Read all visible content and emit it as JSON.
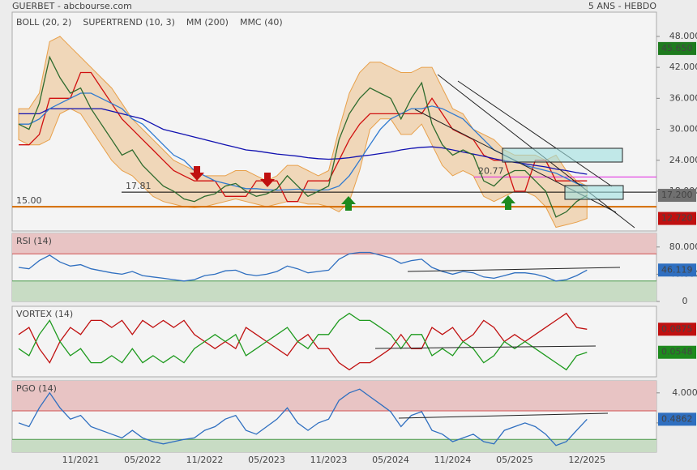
{
  "header": {
    "title": "GUERBET - abcbourse.com",
    "period": "5 ANS - HEBDO"
  },
  "chart_data": [
    {
      "type": "line",
      "ylim": [
        10.3,
        52.7
      ],
      "yticks": [
        {
          "value": 48,
          "label": "48.000"
        },
        {
          "value": 42,
          "label": "42.000"
        },
        {
          "value": 36,
          "label": "36.000"
        },
        {
          "value": 30,
          "label": "30.000"
        },
        {
          "value": 24,
          "label": "24.000"
        },
        {
          "value": 18,
          "label": "18.000"
        }
      ],
      "bands": [
        {
          "name": "BOLL (20, 2)",
          "color": "#e8a04a",
          "upper": [
            34,
            34,
            37,
            47,
            48,
            46,
            44,
            42,
            40,
            38,
            35,
            32,
            30,
            28,
            26,
            24,
            23,
            22,
            21,
            21,
            21,
            22,
            22,
            21,
            20,
            21,
            23,
            23,
            22,
            21,
            22,
            30,
            37,
            41,
            43,
            43,
            42,
            41,
            41,
            42,
            42,
            38,
            34,
            33,
            30,
            29,
            28,
            26,
            25,
            25,
            25,
            24,
            25,
            22,
            20,
            19
          ],
          "lower": [
            28,
            27,
            27,
            28,
            33,
            34,
            33,
            30,
            27,
            24,
            22,
            21,
            19,
            17,
            16,
            15.5,
            15,
            14.8,
            15,
            15.5,
            16,
            16.5,
            16,
            15.5,
            15,
            15.5,
            16,
            16,
            15.5,
            15.5,
            15,
            14,
            16,
            22,
            30,
            32,
            32,
            29,
            29,
            31,
            27,
            23,
            21,
            22,
            21,
            17,
            16,
            17,
            18,
            18,
            17,
            15,
            11,
            11.5,
            12,
            12.72
          ]
        }
      ],
      "series": [
        {
          "name": "SUPERTREND (10, 3)",
          "color": "#d01010",
          "values": [
            27,
            27,
            29,
            36,
            36,
            36,
            41,
            41,
            38,
            35,
            32,
            30,
            28,
            26,
            24,
            22,
            21,
            20,
            20,
            20,
            17,
            17,
            17,
            20,
            20,
            20,
            16,
            16,
            20,
            20,
            20,
            24,
            28,
            31,
            33,
            33,
            33,
            33,
            33,
            33,
            36,
            33,
            30,
            29,
            28,
            25,
            24,
            24,
            18,
            18,
            24,
            24,
            20,
            20,
            20,
            20
          ]
        },
        {
          "name": "MM (200)",
          "color": "#1010b0",
          "values": [
            33,
            33,
            33,
            34,
            34,
            34,
            34,
            34,
            34,
            33.5,
            33,
            32.5,
            32,
            31,
            30,
            29.5,
            29,
            28.5,
            28,
            27.5,
            27,
            26.5,
            26,
            25.8,
            25.5,
            25.2,
            25,
            24.8,
            24.5,
            24.3,
            24.2,
            24.3,
            24.5,
            24.8,
            25,
            25.3,
            25.6,
            26,
            26.3,
            26.5,
            26.6,
            26.4,
            26,
            25.6,
            25.2,
            24.8,
            24.3,
            23.9,
            23.6,
            23.3,
            23,
            22.7,
            22.3,
            22,
            21.6,
            21.3
          ]
        },
        {
          "name": "MMC (40)",
          "color": "#2f7ad0",
          "values": [
            31,
            31,
            32,
            34,
            35,
            36,
            37,
            37,
            36,
            35,
            34,
            32,
            31,
            29,
            27,
            25,
            24,
            22,
            21,
            20,
            19.5,
            19,
            18.5,
            18.5,
            18.3,
            18.2,
            18.3,
            18.4,
            18.3,
            18.2,
            18.3,
            19,
            21,
            24,
            27,
            30,
            32,
            33,
            34,
            34,
            34.5,
            34,
            33,
            32,
            30,
            28,
            26,
            25,
            24,
            23,
            22.5,
            22,
            21.5,
            20.5,
            19.5,
            19
          ]
        },
        {
          "color": "#2e6b2e",
          "values": [
            31,
            30,
            35,
            44,
            40,
            37,
            38,
            34,
            31,
            28,
            25,
            26,
            23,
            21,
            19,
            18,
            16.5,
            16,
            17,
            17.5,
            19,
            19.5,
            18,
            17,
            17.5,
            18.5,
            21,
            19,
            17,
            18,
            19,
            28,
            33,
            36,
            38,
            37,
            36,
            32,
            36,
            39,
            31,
            27,
            25,
            26,
            25,
            20,
            19,
            21,
            22,
            22,
            20,
            18,
            13,
            14,
            16,
            17.2
          ]
        }
      ],
      "levels": [
        {
          "value": 15,
          "label": "15.00",
          "color": "#d46a00"
        },
        {
          "value": 17.81,
          "label": "17.81",
          "color": "#000000"
        },
        {
          "value": 20.77,
          "label": "20.77",
          "color": "#e020e0"
        }
      ],
      "marks": [
        {
          "value": 45.65,
          "label": "45.650",
          "color": "#1e7b1e"
        },
        {
          "value": 17.2,
          "label": "17.200",
          "color": "#707070"
        },
        {
          "value": 12.72,
          "label": "12.720",
          "color": "#c01010"
        }
      ]
    },
    {
      "type": "line",
      "title": "RSI (14)",
      "title_color": "#2f6fc0",
      "ylim": [
        0,
        100
      ],
      "yticks": [
        {
          "value": 80,
          "label": "80.000"
        },
        {
          "value": 40,
          "label": "40.000"
        },
        0
      ],
      "zones": [
        {
          "above": 70,
          "color": "#e8c4c4",
          "line": "#d05050"
        },
        {
          "below": 30,
          "color": "#c8dcc4",
          "line": "#4a9a4a"
        }
      ],
      "series": [
        {
          "color": "#2f6fc0",
          "values": [
            50,
            48,
            60,
            68,
            58,
            52,
            54,
            48,
            45,
            42,
            40,
            44,
            38,
            36,
            34,
            32,
            30,
            32,
            38,
            40,
            45,
            46,
            40,
            38,
            40,
            44,
            52,
            48,
            42,
            44,
            46,
            62,
            70,
            72,
            72,
            68,
            64,
            56,
            60,
            62,
            50,
            44,
            40,
            44,
            42,
            36,
            34,
            38,
            42,
            42,
            40,
            36,
            30,
            32,
            38,
            46.119
          ]
        }
      ],
      "marks": [
        {
          "value": 46.119,
          "label": "46.119",
          "color": "#2f6fc0"
        }
      ]
    },
    {
      "type": "line",
      "title": "VORTEX (14)",
      "title_color": "#1e8a1e",
      "ylim": [
        0.02,
        0.12
      ],
      "series": [
        {
          "color": "#c01010",
          "values": [
            0.08,
            0.09,
            0.06,
            0.04,
            0.07,
            0.09,
            0.08,
            0.1,
            0.1,
            0.09,
            0.1,
            0.08,
            0.1,
            0.09,
            0.1,
            0.09,
            0.1,
            0.08,
            0.07,
            0.06,
            0.07,
            0.06,
            0.09,
            0.08,
            0.07,
            0.06,
            0.05,
            0.07,
            0.08,
            0.06,
            0.06,
            0.04,
            0.03,
            0.04,
            0.04,
            0.05,
            0.06,
            0.08,
            0.06,
            0.06,
            0.09,
            0.08,
            0.09,
            0.07,
            0.08,
            0.1,
            0.09,
            0.07,
            0.08,
            0.07,
            0.08,
            0.09,
            0.1,
            0.11,
            0.09,
            0.0875
          ]
        },
        {
          "color": "#1e9a1e",
          "values": [
            0.06,
            0.05,
            0.08,
            0.1,
            0.07,
            0.05,
            0.06,
            0.04,
            0.04,
            0.05,
            0.04,
            0.06,
            0.04,
            0.05,
            0.04,
            0.05,
            0.04,
            0.06,
            0.07,
            0.08,
            0.07,
            0.08,
            0.05,
            0.06,
            0.07,
            0.08,
            0.09,
            0.07,
            0.06,
            0.08,
            0.08,
            0.1,
            0.11,
            0.1,
            0.1,
            0.09,
            0.08,
            0.06,
            0.08,
            0.08,
            0.05,
            0.06,
            0.05,
            0.07,
            0.06,
            0.04,
            0.05,
            0.07,
            0.06,
            0.07,
            0.06,
            0.05,
            0.04,
            0.03,
            0.05,
            0.0548
          ]
        }
      ],
      "marks": [
        {
          "value": 0.0875,
          "label": "0.0875",
          "color": "#c01010"
        },
        {
          "value": 0.0548,
          "label": "0.0548",
          "color": "#1e8a1e"
        }
      ]
    },
    {
      "type": "line",
      "title": "PGO (14)",
      "title_color": "#2f6fc0",
      "ylim": [
        -3.9,
        5.6
      ],
      "yticks": [
        {
          "value": 4,
          "label": "4.000"
        },
        0
      ],
      "zones": [
        {
          "above": 1.6,
          "color": "#e8c4c4",
          "line": "#d05050"
        },
        {
          "below": -2.2,
          "color": "#c8dcc4",
          "line": "#4a9a4a"
        }
      ],
      "categories": [
        null,
        null,
        null,
        null,
        null,
        null,
        "11/2021",
        null,
        null,
        null,
        null,
        null,
        "05/2022",
        null,
        null,
        null,
        null,
        null,
        "11/2022",
        null,
        null,
        null,
        null,
        null,
        "05/2023",
        null,
        null,
        null,
        null,
        null,
        "11/2023",
        null,
        null,
        null,
        null,
        null,
        "05/2024",
        null,
        null,
        null,
        null,
        null,
        "11/2024",
        null,
        null,
        null,
        null,
        null,
        "05/2025",
        null,
        null,
        null,
        null,
        null,
        null,
        "12/2025"
      ],
      "series": [
        {
          "color": "#2f6fc0",
          "values": [
            0,
            -0.5,
            2,
            4,
            2,
            0.5,
            1,
            -0.5,
            -1,
            -1.5,
            -2,
            -1,
            -2,
            -2.5,
            -2.8,
            -2.5,
            -2.2,
            -2,
            -1,
            -0.5,
            0.5,
            1,
            -1,
            -1.5,
            -0.5,
            0.5,
            2,
            0,
            -1,
            0,
            0.5,
            3,
            4,
            4.5,
            3.5,
            2.5,
            1.5,
            -0.5,
            1,
            1.5,
            -1,
            -1.5,
            -2.5,
            -2,
            -1.5,
            -2.5,
            -2.8,
            -1,
            -0.5,
            0,
            -0.5,
            -1.5,
            -3,
            -2.5,
            -1,
            0.4862
          ]
        }
      ],
      "marks": [
        {
          "value": 0.4862,
          "label": "0.4862",
          "color": "#2f6fc0"
        }
      ]
    }
  ]
}
